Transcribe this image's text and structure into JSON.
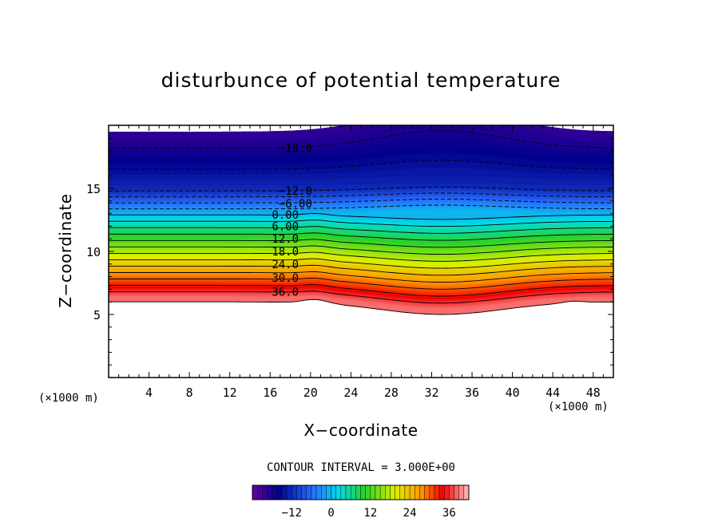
{
  "chart_data": {
    "type": "contour",
    "title": "disturbunce of potential temperature",
    "xlabel": "X−coordinate",
    "ylabel": "Z−coordinate",
    "x_unit_label": "(×1000 m)",
    "z_unit_label": "(×1000 m)",
    "xlim": [
      0,
      50
    ],
    "ylim": [
      0,
      20
    ],
    "xticks": [
      4,
      8,
      12,
      16,
      20,
      24,
      28,
      32,
      36,
      40,
      44,
      48
    ],
    "yticks": [
      5,
      10,
      15
    ],
    "contour_interval_text": "CONTOUR INTERVAL = 3.000E+00",
    "colorbar_ticks": [
      "−12",
      "0",
      "12",
      "24",
      "36"
    ],
    "colorbar_range": [
      -24,
      42
    ],
    "contour_labels": [
      {
        "text": "−18.0",
        "value": -18,
        "x": 18.5,
        "z": 18.2
      },
      {
        "text": "−12.0",
        "value": -12,
        "x": 18.5,
        "z": 14.8
      },
      {
        "text": "−6.00",
        "value": -6,
        "x": 18.5,
        "z": 13.8
      },
      {
        "text": "0.00",
        "value": 0,
        "x": 17.5,
        "z": 12.9
      },
      {
        "text": "6.00",
        "value": 6,
        "x": 17.5,
        "z": 12.0
      },
      {
        "text": "12.0",
        "value": 12,
        "x": 17.5,
        "z": 11.0
      },
      {
        "text": "18.0",
        "value": 18,
        "x": 17.5,
        "z": 10.0
      },
      {
        "text": "24.0",
        "value": 24,
        "x": 17.5,
        "z": 9.0
      },
      {
        "text": "30.0",
        "value": 30,
        "x": 17.5,
        "z": 7.9
      },
      {
        "text": "36.0",
        "value": 36,
        "x": 17.5,
        "z": 6.8
      }
    ],
    "field_top_z": 18.7,
    "field_bottom_z": 6.0,
    "grid": false
  }
}
